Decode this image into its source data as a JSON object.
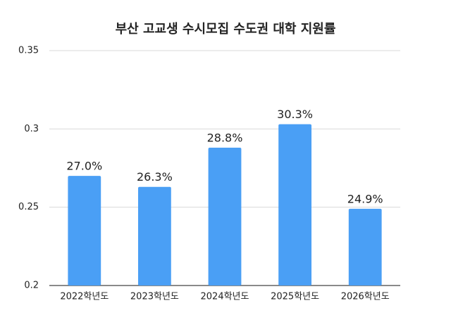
{
  "chart_data": {
    "type": "bar",
    "title": "부산 고교생 수시모집 수도권 대학 지원률",
    "categories": [
      "2022학년도",
      "2023학년도",
      "2024학년도",
      "2025학년도",
      "2026학년도"
    ],
    "values": [
      0.27,
      0.263,
      0.288,
      0.303,
      0.249
    ],
    "value_labels": [
      "27.0%",
      "26.3%",
      "28.8%",
      "30.3%",
      "24.9%"
    ],
    "color": "#4a9ff5",
    "ylim": [
      0.2,
      0.35
    ],
    "yticks": [
      0.2,
      0.25,
      0.3,
      0.35
    ],
    "grid": true
  }
}
